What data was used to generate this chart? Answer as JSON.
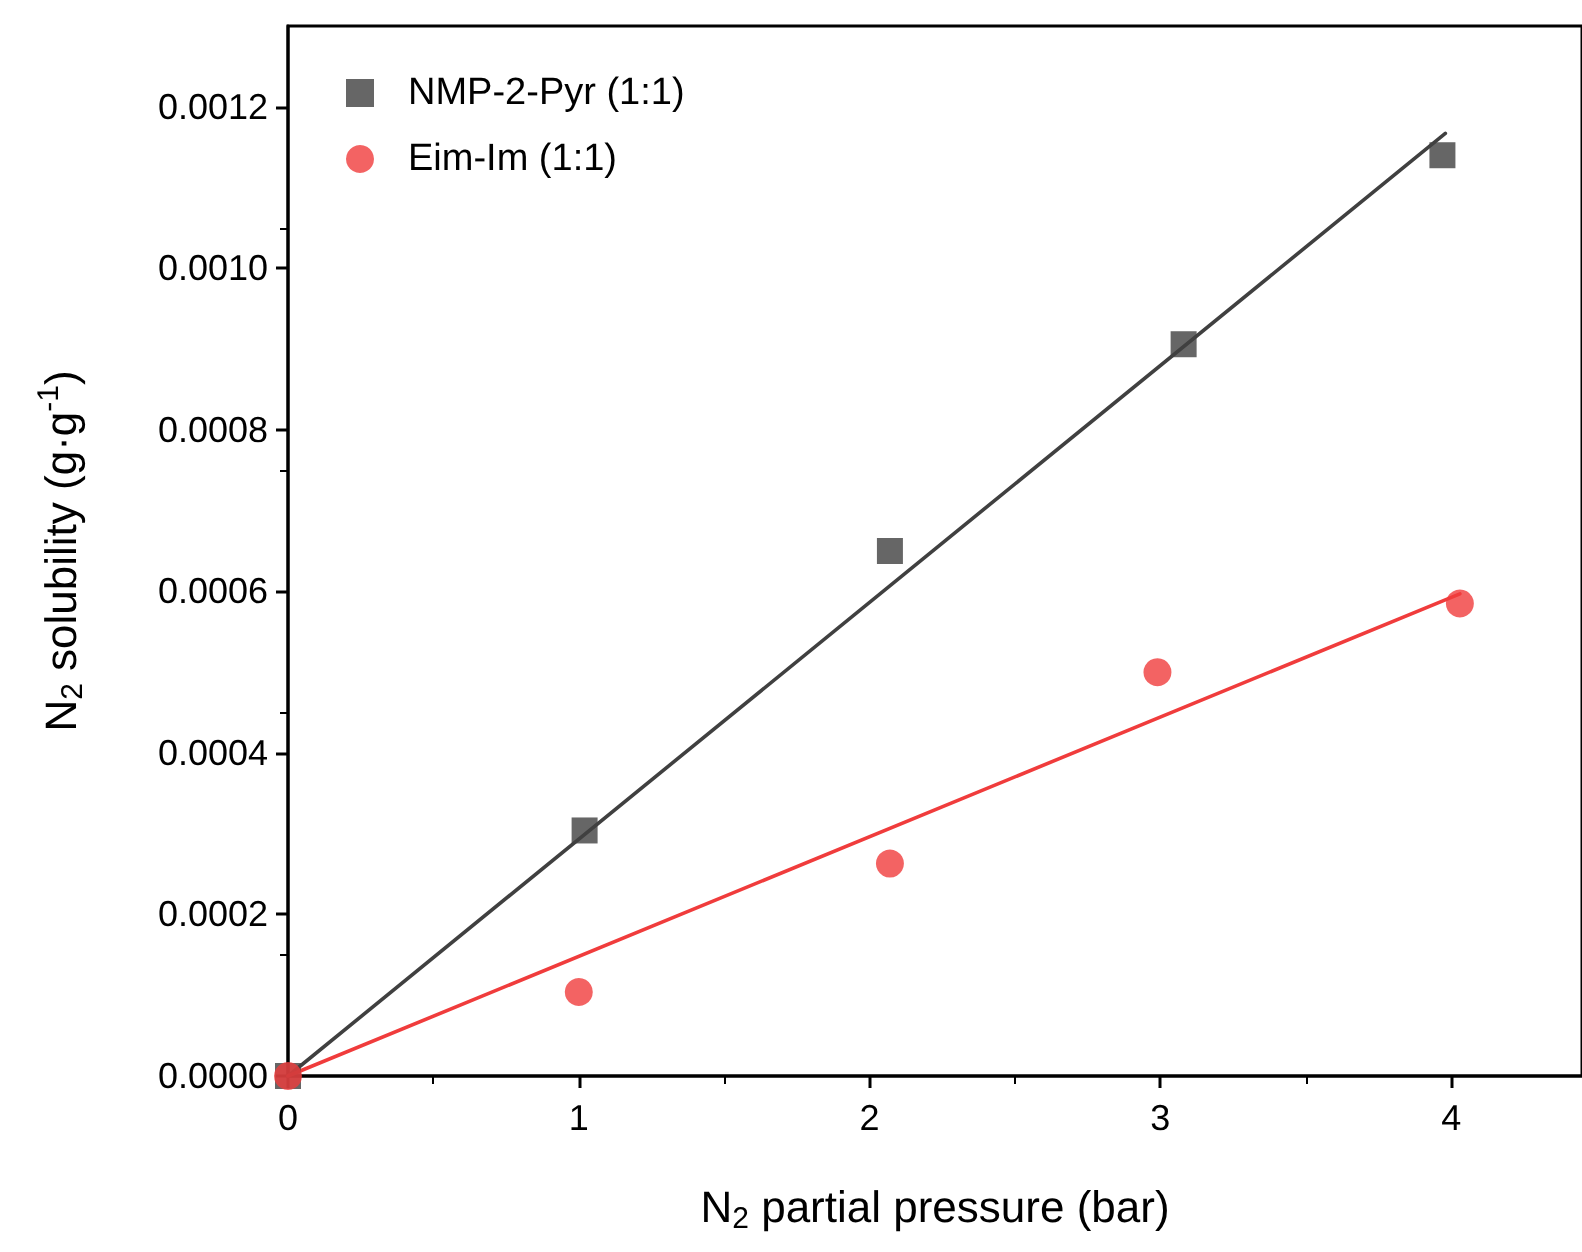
{
  "chart_data": {
    "type": "scatter",
    "xlabel": "N$_{2}$ partial pressure (bar)",
    "ylabel": "N$_{2}$ solubility (g·g$^{-1}$)",
    "xlim": [
      0,
      4.45
    ],
    "xticks": [
      0,
      1,
      2,
      3,
      4
    ],
    "ylim": [
      0,
      0.0013
    ],
    "yticks": [
      {
        "value": 0,
        "label": "0.0000"
      },
      0.0002,
      0.0004,
      0.0006,
      0.0008,
      {
        "value": 0.001,
        "label": "0.0010"
      },
      0.0012
    ],
    "grid": false,
    "legend": "top left",
    "series": [
      {
        "name": "NMP-2-Pyr (1:1)",
        "color": "#404040",
        "marker": "square",
        "x": [
          0,
          1.02,
          2.07,
          3.08,
          3.97
        ],
        "values": [
          0,
          0.000304,
          0.00065,
          0.000906,
          0.00114
        ]
      },
      {
        "name": "Eim-Im (1:1)",
        "color": "#f03c3c",
        "marker": "circle",
        "x": [
          0,
          1.0,
          2.07,
          2.99,
          4.03
        ],
        "values": [
          0,
          0.000104,
          0.000263,
          0.0005,
          0.000585
        ]
      },
      {
        "type": "line",
        "color": "#404040",
        "marker": "none",
        "line_style": "solid",
        "x": [
          0,
          3.98
        ],
        "values": [
          0,
          0.001167
        ]
      },
      {
        "type": "line",
        "color": "#f03c3c",
        "marker": "none",
        "line_style": "solid",
        "x": [
          0,
          4.03
        ],
        "values": [
          0,
          0.000597
        ]
      }
    ]
  }
}
